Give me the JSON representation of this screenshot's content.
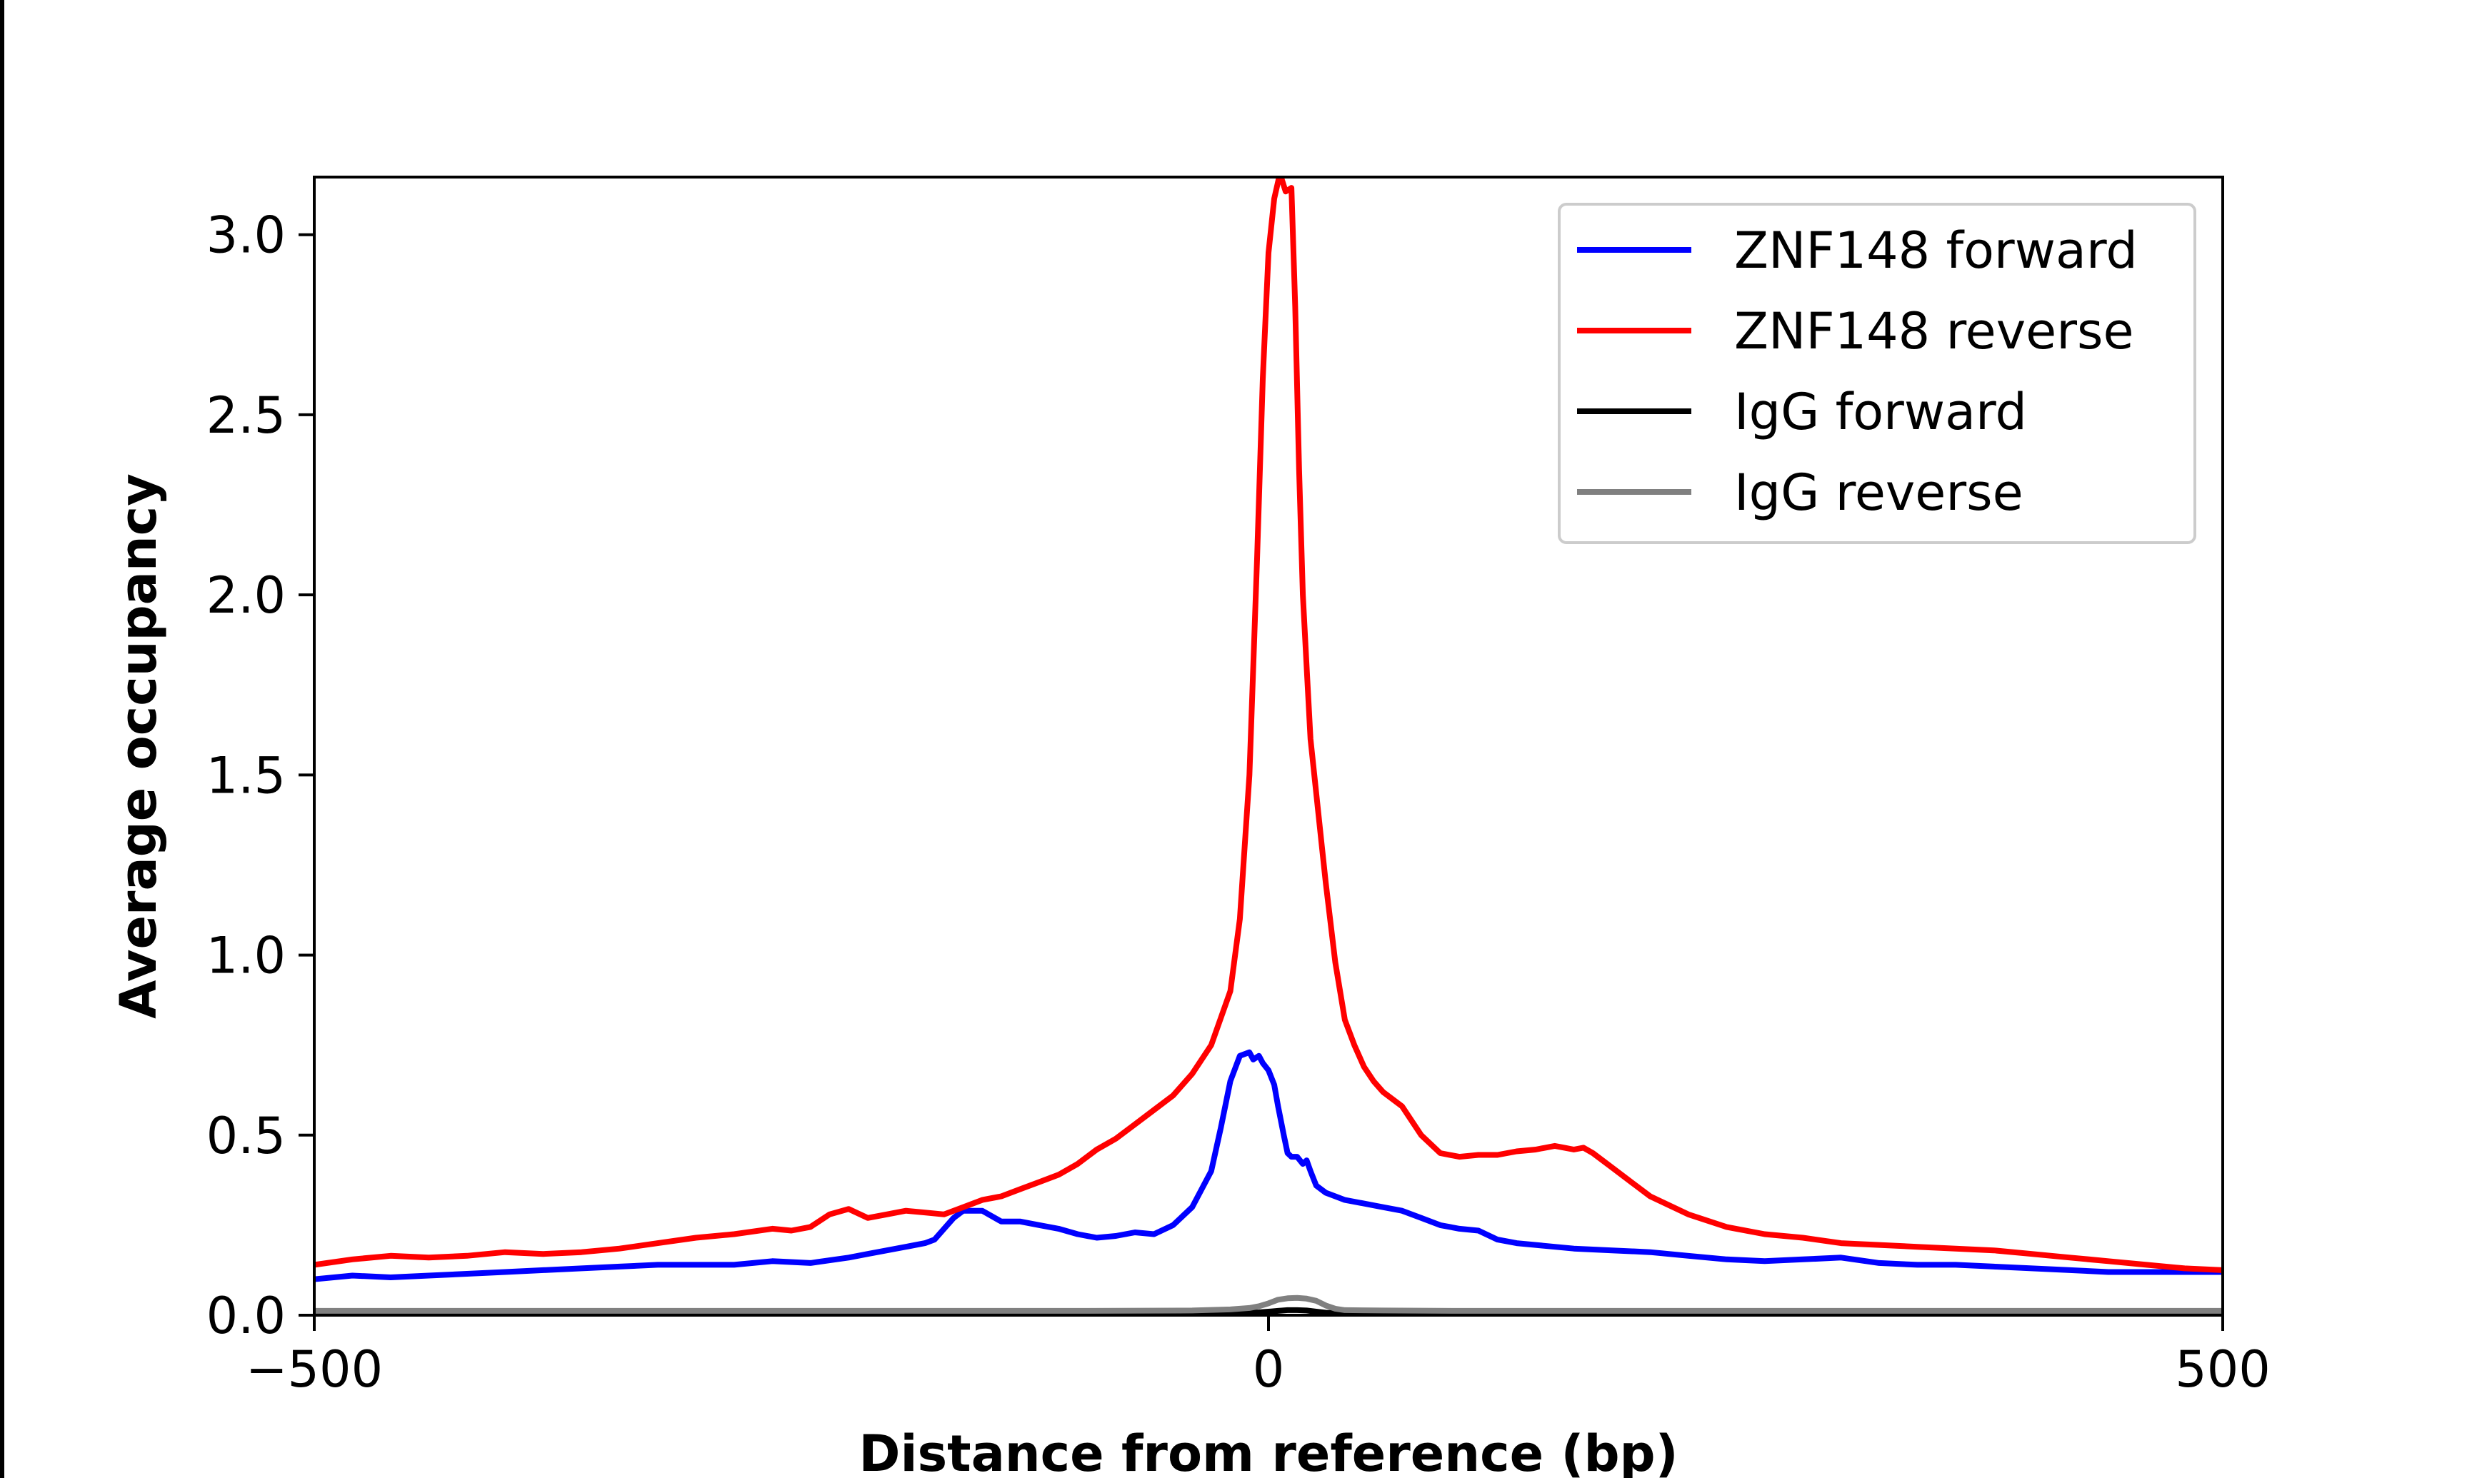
{
  "chart_data": {
    "type": "line",
    "title": "",
    "xlabel": "Distance from reference (bp)",
    "ylabel": "Average occupancy",
    "xlim": [
      -500,
      500
    ],
    "ylim": [
      0,
      3.16
    ],
    "grid": false,
    "legend_position": "top-right",
    "x_ticks": [
      {
        "value": -500,
        "label": "−500"
      },
      {
        "value": 0,
        "label": "0"
      },
      {
        "value": 500,
        "label": "500"
      }
    ],
    "y_ticks": [
      {
        "value": 0.0,
        "label": "0.0"
      },
      {
        "value": 0.5,
        "label": "0.5"
      },
      {
        "value": 1.0,
        "label": "1.0"
      },
      {
        "value": 1.5,
        "label": "1.5"
      },
      {
        "value": 2.0,
        "label": "2.0"
      },
      {
        "value": 2.5,
        "label": "2.5"
      },
      {
        "value": 3.0,
        "label": "3.0"
      }
    ],
    "series": [
      {
        "name": "ZNF148 forward",
        "color": "#0000ff",
        "x": [
          -500,
          -480,
          -460,
          -440,
          -420,
          -400,
          -380,
          -360,
          -340,
          -320,
          -300,
          -280,
          -260,
          -240,
          -220,
          -210,
          -200,
          -190,
          -180,
          -175,
          -170,
          -165,
          -160,
          -150,
          -140,
          -130,
          -120,
          -110,
          -100,
          -90,
          -80,
          -70,
          -60,
          -50,
          -40,
          -30,
          -25,
          -20,
          -15,
          -10,
          -8,
          -5,
          -3,
          0,
          3,
          5,
          8,
          10,
          12,
          15,
          18,
          20,
          22,
          25,
          30,
          35,
          40,
          50,
          60,
          70,
          80,
          90,
          100,
          110,
          120,
          130,
          140,
          150,
          160,
          180,
          200,
          220,
          240,
          260,
          280,
          300,
          320,
          340,
          360,
          380,
          400,
          420,
          440,
          460,
          480,
          500
        ],
        "values": [
          0.1,
          0.11,
          0.105,
          0.11,
          0.115,
          0.12,
          0.125,
          0.13,
          0.135,
          0.14,
          0.14,
          0.14,
          0.15,
          0.145,
          0.16,
          0.17,
          0.18,
          0.19,
          0.2,
          0.21,
          0.24,
          0.27,
          0.29,
          0.29,
          0.26,
          0.26,
          0.25,
          0.24,
          0.225,
          0.215,
          0.22,
          0.23,
          0.225,
          0.25,
          0.3,
          0.4,
          0.52,
          0.65,
          0.72,
          0.73,
          0.71,
          0.72,
          0.7,
          0.68,
          0.64,
          0.58,
          0.5,
          0.45,
          0.44,
          0.44,
          0.42,
          0.43,
          0.4,
          0.36,
          0.34,
          0.33,
          0.32,
          0.31,
          0.3,
          0.29,
          0.27,
          0.25,
          0.24,
          0.235,
          0.21,
          0.2,
          0.195,
          0.19,
          0.185,
          0.18,
          0.175,
          0.165,
          0.155,
          0.15,
          0.155,
          0.16,
          0.145,
          0.14,
          0.14,
          0.135,
          0.13,
          0.125,
          0.12,
          0.12,
          0.12,
          0.12
        ]
      },
      {
        "name": "ZNF148 reverse",
        "color": "#ff0000",
        "x": [
          -500,
          -480,
          -460,
          -440,
          -420,
          -400,
          -380,
          -360,
          -340,
          -320,
          -300,
          -280,
          -260,
          -250,
          -240,
          -230,
          -220,
          -210,
          -200,
          -190,
          -180,
          -170,
          -160,
          -150,
          -140,
          -130,
          -120,
          -110,
          -100,
          -90,
          -80,
          -70,
          -60,
          -50,
          -40,
          -30,
          -20,
          -15,
          -10,
          -6,
          -3,
          0,
          3,
          6,
          9,
          12,
          14,
          16,
          18,
          20,
          22,
          25,
          28,
          30,
          35,
          40,
          45,
          50,
          55,
          60,
          70,
          80,
          90,
          100,
          110,
          120,
          130,
          140,
          150,
          155,
          160,
          165,
          170,
          180,
          190,
          200,
          220,
          240,
          260,
          280,
          300,
          320,
          340,
          360,
          380,
          400,
          420,
          440,
          460,
          480,
          500
        ],
        "values": [
          0.14,
          0.155,
          0.165,
          0.16,
          0.165,
          0.175,
          0.17,
          0.175,
          0.185,
          0.2,
          0.215,
          0.225,
          0.24,
          0.235,
          0.245,
          0.28,
          0.295,
          0.27,
          0.28,
          0.29,
          0.285,
          0.28,
          0.3,
          0.32,
          0.33,
          0.35,
          0.37,
          0.39,
          0.42,
          0.46,
          0.49,
          0.53,
          0.57,
          0.61,
          0.67,
          0.75,
          0.9,
          1.1,
          1.5,
          2.1,
          2.6,
          2.95,
          3.1,
          3.17,
          3.12,
          3.13,
          2.8,
          2.35,
          2.0,
          1.8,
          1.6,
          1.45,
          1.3,
          1.2,
          0.98,
          0.82,
          0.75,
          0.69,
          0.65,
          0.62,
          0.58,
          0.5,
          0.45,
          0.44,
          0.445,
          0.445,
          0.455,
          0.46,
          0.47,
          0.465,
          0.46,
          0.465,
          0.45,
          0.41,
          0.37,
          0.33,
          0.28,
          0.245,
          0.225,
          0.215,
          0.2,
          0.195,
          0.19,
          0.185,
          0.18,
          0.17,
          0.16,
          0.15,
          0.14,
          0.13,
          0.125
        ]
      },
      {
        "name": "IgG forward",
        "color": "#000000",
        "x": [
          -500,
          -100,
          -20,
          -5,
          0,
          5,
          10,
          15,
          20,
          25,
          30,
          40,
          100,
          500
        ],
        "values": [
          0.005,
          0.005,
          0.006,
          0.008,
          0.01,
          0.012,
          0.014,
          0.014,
          0.013,
          0.01,
          0.007,
          0.005,
          0.005,
          0.005
        ]
      },
      {
        "name": "IgG reverse",
        "color": "#808080",
        "x": [
          -500,
          -100,
          -40,
          -20,
          -10,
          -5,
          0,
          5,
          10,
          15,
          20,
          25,
          30,
          35,
          40,
          60,
          100,
          500
        ],
        "values": [
          0.012,
          0.012,
          0.013,
          0.016,
          0.02,
          0.025,
          0.033,
          0.043,
          0.047,
          0.048,
          0.046,
          0.04,
          0.027,
          0.018,
          0.014,
          0.013,
          0.012,
          0.012
        ]
      }
    ]
  }
}
